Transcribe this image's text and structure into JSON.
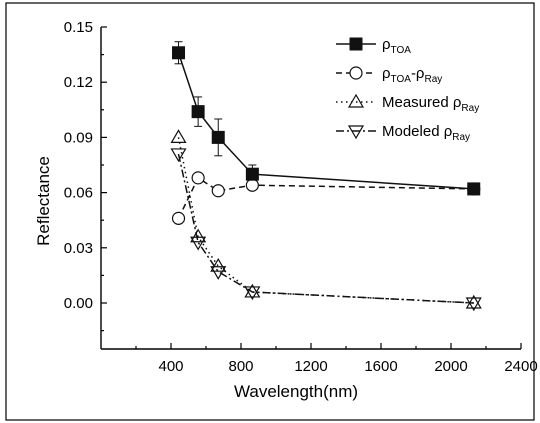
{
  "chart_data": {
    "type": "line",
    "xlabel": "Wavelength(nm)",
    "ylabel": "Reflectance",
    "xlim": [
      0,
      2400
    ],
    "ylim": [
      -0.025,
      0.15
    ],
    "xticks": [
      "400",
      "800",
      "1200",
      "1600",
      "2000",
      "2400"
    ],
    "yticks": [
      "0.00",
      "0.03",
      "0.06",
      "0.09",
      "0.12",
      "0.15"
    ],
    "legend_position": "top-right",
    "series": [
      {
        "key": "toa",
        "legend": {
          "symbol": "ρ",
          "sub": "TOA",
          "tail": ""
        },
        "marker": "square-filled",
        "dash": "solid",
        "x": [
          443,
          555,
          670,
          865,
          2130
        ],
        "y": [
          0.136,
          0.104,
          0.09,
          0.07,
          0.062
        ],
        "err": [
          0.006,
          0.008,
          0.01,
          0.005,
          0.001
        ]
      },
      {
        "key": "diff",
        "legend": {
          "symbol": "ρ",
          "sub": "TOA",
          "mid": "-ρ",
          "sub2": "Ray"
        },
        "marker": "circle-open",
        "dash": "dashed",
        "x": [
          443,
          555,
          670,
          865,
          2130
        ],
        "y": [
          0.046,
          0.068,
          0.061,
          0.064,
          0.062
        ]
      },
      {
        "key": "measured",
        "legend": {
          "pre": "Measured ",
          "symbol": "ρ",
          "sub": "Ray"
        },
        "marker": "triangle-up-open",
        "dash": "dotted",
        "x": [
          443,
          555,
          670,
          865,
          2130
        ],
        "y": [
          0.09,
          0.036,
          0.02,
          0.006,
          0.0
        ]
      },
      {
        "key": "modeled",
        "legend": {
          "pre": "Modeled ",
          "symbol": "ρ",
          "sub": "Ray"
        },
        "marker": "triangle-down-open",
        "dash": "dashdot",
        "x": [
          443,
          555,
          670,
          865,
          2130
        ],
        "y": [
          0.081,
          0.033,
          0.017,
          0.006,
          0.0
        ]
      }
    ]
  }
}
